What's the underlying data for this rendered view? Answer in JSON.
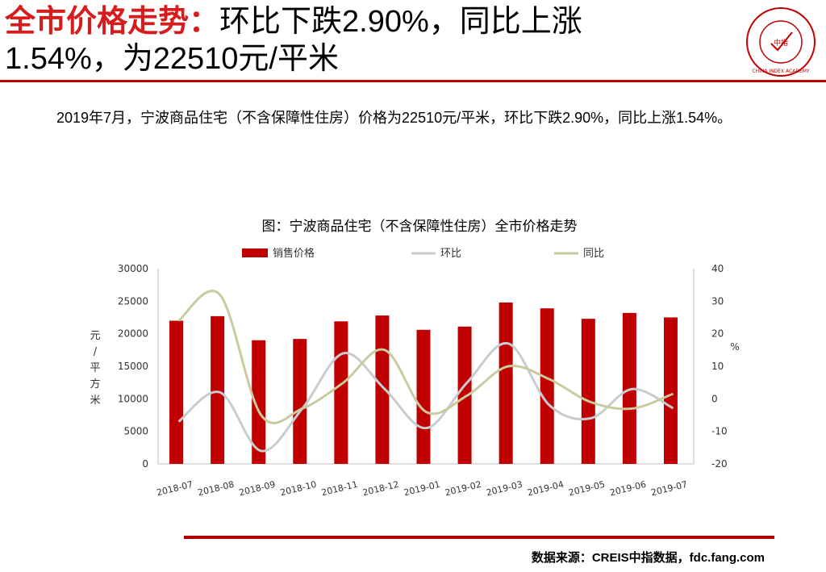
{
  "header": {
    "title_red": "全市价格走势：",
    "title_black_1": "环比下跌2.90%，同比上涨",
    "title_line2": "1.54%，为22510元/平米",
    "logo_text": "CHINA INDEX ACADEMY",
    "logo_center": "中指"
  },
  "summary": {
    "text": "2019年7月，宁波商品住宅（不含保障性住房）价格为22510元/平米，环比下跌2.90%，同比上涨1.54%。"
  },
  "chart_data": {
    "type": "bar",
    "title": "图：宁波商品住宅（不含保障性住房）全市价格走势",
    "categories": [
      "2018-07",
      "2018-08",
      "2018-09",
      "2018-10",
      "2018-11",
      "2018-12",
      "2019-01",
      "2019-02",
      "2019-03",
      "2019-04",
      "2019-05",
      "2019-06",
      "2019-07"
    ],
    "series": [
      {
        "name": "销售价格",
        "type": "bar",
        "axis": "left",
        "color": "#c00000",
        "values": [
          22000,
          22700,
          19000,
          19200,
          21900,
          22800,
          20600,
          21100,
          24800,
          23900,
          22300,
          23200,
          22510
        ]
      },
      {
        "name": "环比",
        "type": "line",
        "axis": "right",
        "color": "#c8ccd0",
        "values": [
          -7,
          2,
          -16,
          -3,
          14,
          3,
          -9,
          5,
          17,
          -2,
          -6,
          3,
          -2.9
        ]
      },
      {
        "name": "同比",
        "type": "line",
        "axis": "right",
        "color": "#c9cb9f",
        "values": [
          24,
          32,
          -5,
          -3,
          5,
          15,
          -4,
          1,
          10,
          6,
          -1,
          -3,
          1.54
        ]
      }
    ],
    "ylabel_left": "元/平方米",
    "ylabel_right": "%",
    "ylim_left": [
      0,
      30000
    ],
    "ylim_right": [
      -20,
      40
    ],
    "yticks_left": [
      "0",
      "5000",
      "10000",
      "15000",
      "20000",
      "25000",
      "30000"
    ],
    "yticks_right": [
      "-20",
      "-10",
      "0",
      "10",
      "20",
      "30",
      "40"
    ],
    "legend_position": "top",
    "grid": false
  },
  "footer": {
    "source": "数据来源：CREIS中指数据，fdc.fang.com"
  }
}
